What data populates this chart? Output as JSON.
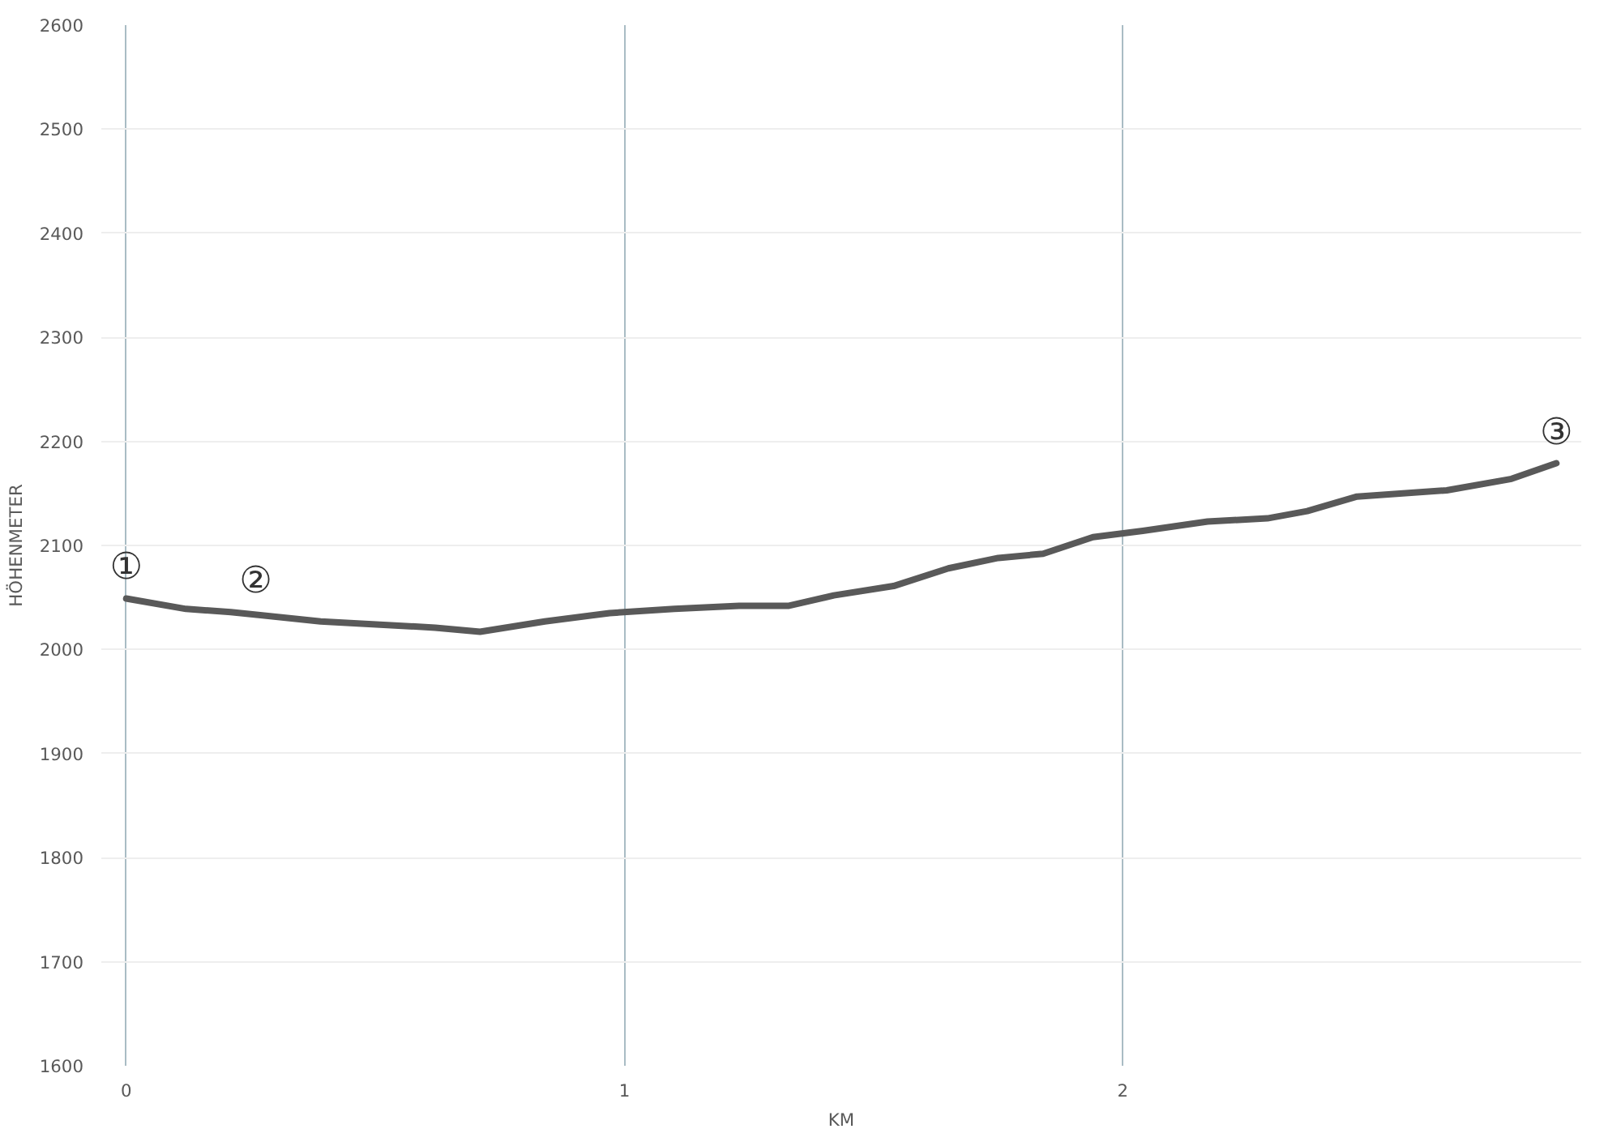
{
  "chart_data": {
    "type": "line",
    "xlabel": "KM",
    "ylabel": "HÖHENMETER",
    "x": [
      0,
      0.12,
      0.21,
      0.39,
      0.62,
      0.71,
      0.84,
      0.97,
      1.1,
      1.23,
      1.33,
      1.42,
      1.54,
      1.65,
      1.75,
      1.84,
      1.94,
      2.04,
      2.17,
      2.29,
      2.37,
      2.47,
      2.65,
      2.78,
      2.87
    ],
    "series": [
      {
        "color": "#595959",
        "values": [
          2049,
          2039,
          2036,
          2027,
          2021,
          2017,
          2027,
          2035,
          2039,
          2042,
          2042,
          2052,
          2061,
          2078,
          2088,
          2092,
          2108,
          2114,
          2123,
          2126,
          2133,
          2147,
          2153,
          2164,
          2179
        ]
      }
    ],
    "xlim": [
      -0.05,
      2.92
    ],
    "xticks": [
      0,
      1,
      2
    ],
    "ylim": [
      1600,
      2600
    ],
    "yticks": [
      1600,
      1700,
      1800,
      1900,
      2000,
      2100,
      2200,
      2300,
      2400,
      2500,
      2600
    ],
    "grid": true,
    "marker": "none",
    "line_style": "solid",
    "annotations": [
      {
        "text": "①",
        "x": 0,
        "y": 2049
      },
      {
        "text": "②",
        "x": 0.26,
        "y": 2036
      },
      {
        "text": "③",
        "x": 2.87,
        "y": 2179
      }
    ]
  }
}
